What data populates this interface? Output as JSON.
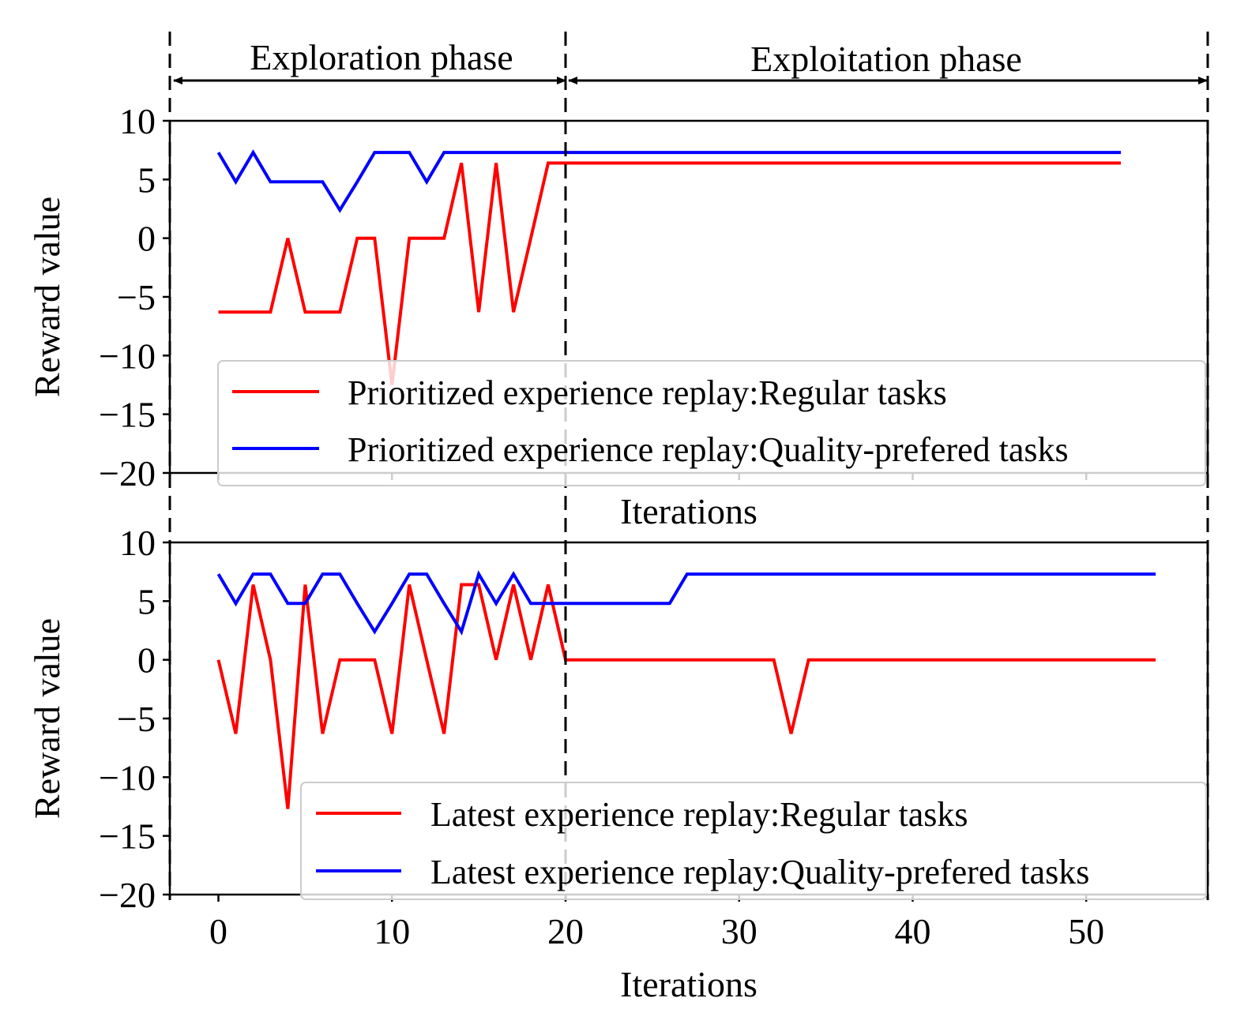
{
  "phases": {
    "exploration_label": "Exploration phase",
    "exploitation_label": "Exploitation phase",
    "boundaries_x": [
      -2.8,
      20,
      57
    ]
  },
  "chart_data": [
    {
      "type": "line",
      "xlabel": "Iterations",
      "ylabel": "Reward value",
      "xlim": [
        -2.8,
        57
      ],
      "ylim": [
        -20,
        10
      ],
      "yticks": [
        10,
        5,
        0,
        -5,
        -10,
        -15,
        -20
      ],
      "ytick_labels": [
        "10",
        "5",
        "0",
        "−5",
        "−10",
        "−15",
        "−20"
      ],
      "xticks": [
        0,
        10,
        20,
        30,
        40,
        50
      ],
      "show_xtick_labels": false,
      "legend_position": "lower-right",
      "grid": false,
      "series": [
        {
          "name": "Prioritized experience replay:Regular tasks",
          "color": "#ff0000",
          "x": [
            0,
            1,
            2,
            3,
            4,
            5,
            6,
            7,
            8,
            9,
            10,
            11,
            12,
            13,
            14,
            15,
            16,
            17,
            18,
            19,
            20,
            21,
            22,
            23,
            24,
            25,
            26,
            27,
            28,
            29,
            30,
            31,
            32,
            33,
            34,
            35,
            36,
            37,
            38,
            39,
            40,
            41,
            42,
            43,
            44,
            45,
            46,
            47,
            48,
            49,
            50,
            51,
            52
          ],
          "values": [
            -6.3,
            -6.3,
            -6.3,
            -6.3,
            0,
            -6.3,
            -6.3,
            -6.3,
            0,
            0,
            -12.5,
            0,
            0,
            0,
            6.4,
            -6.3,
            6.4,
            -6.3,
            0,
            6.4,
            6.4,
            6.4,
            6.4,
            6.4,
            6.4,
            6.4,
            6.4,
            6.4,
            6.4,
            6.4,
            6.4,
            6.4,
            6.4,
            6.4,
            6.4,
            6.4,
            6.4,
            6.4,
            6.4,
            6.4,
            6.4,
            6.4,
            6.4,
            6.4,
            6.4,
            6.4,
            6.4,
            6.4,
            6.4,
            6.4,
            6.4,
            6.4,
            6.4
          ]
        },
        {
          "name": "Prioritized experience replay:Quality-prefered tasks",
          "color": "#0000ff",
          "x": [
            0,
            1,
            2,
            3,
            4,
            5,
            6,
            7,
            8,
            9,
            10,
            11,
            12,
            13,
            14,
            15,
            16,
            17,
            18,
            19,
            20,
            21,
            22,
            23,
            24,
            25,
            26,
            27,
            28,
            29,
            30,
            31,
            32,
            33,
            34,
            35,
            36,
            37,
            38,
            39,
            40,
            41,
            42,
            43,
            44,
            45,
            46,
            47,
            48,
            49,
            50,
            51,
            52
          ],
          "values": [
            7.3,
            4.8,
            7.3,
            4.8,
            4.8,
            4.8,
            4.8,
            2.4,
            4.8,
            7.3,
            7.3,
            7.3,
            4.8,
            7.3,
            7.3,
            7.3,
            7.3,
            7.3,
            7.3,
            7.3,
            7.3,
            7.3,
            7.3,
            7.3,
            7.3,
            7.3,
            7.3,
            7.3,
            7.3,
            7.3,
            7.3,
            7.3,
            7.3,
            7.3,
            7.3,
            7.3,
            7.3,
            7.3,
            7.3,
            7.3,
            7.3,
            7.3,
            7.3,
            7.3,
            7.3,
            7.3,
            7.3,
            7.3,
            7.3,
            7.3,
            7.3,
            7.3,
            7.3
          ]
        }
      ]
    },
    {
      "type": "line",
      "xlabel": "Iterations",
      "ylabel": "Reward value",
      "xlim": [
        -2.8,
        57
      ],
      "ylim": [
        -20,
        10
      ],
      "yticks": [
        10,
        5,
        0,
        -5,
        -10,
        -15,
        -20
      ],
      "ytick_labels": [
        "10",
        "5",
        "0",
        "−5",
        "−10",
        "−15",
        "−20"
      ],
      "xticks": [
        0,
        10,
        20,
        30,
        40,
        50
      ],
      "xtick_labels": [
        "0",
        "10",
        "20",
        "30",
        "40",
        "50"
      ],
      "show_xtick_labels": true,
      "legend_position": "lower-right",
      "grid": false,
      "series": [
        {
          "name": "Latest experience replay:Regular tasks",
          "color": "#ff0000",
          "x": [
            0,
            1,
            2,
            3,
            4,
            5,
            6,
            7,
            8,
            9,
            10,
            11,
            12,
            13,
            14,
            15,
            16,
            17,
            18,
            19,
            20,
            21,
            22,
            23,
            24,
            25,
            26,
            27,
            28,
            29,
            30,
            31,
            32,
            33,
            34,
            35,
            36,
            37,
            38,
            39,
            40,
            41,
            42,
            43,
            44,
            45,
            46,
            47,
            48,
            49,
            50,
            51,
            52,
            53,
            54
          ],
          "values": [
            0,
            -6.3,
            6.4,
            0,
            -12.7,
            6.4,
            -6.3,
            0,
            0,
            0,
            -6.3,
            6.4,
            0,
            -6.3,
            6.4,
            6.4,
            0,
            6.4,
            0,
            6.4,
            0,
            0,
            0,
            0,
            0,
            0,
            0,
            0,
            0,
            0,
            0,
            0,
            0,
            -6.3,
            0,
            0,
            0,
            0,
            0,
            0,
            0,
            0,
            0,
            0,
            0,
            0,
            0,
            0,
            0,
            0,
            0,
            0,
            0,
            0,
            0
          ]
        },
        {
          "name": "Latest experience replay:Quality-prefered tasks",
          "color": "#0000ff",
          "x": [
            0,
            1,
            2,
            3,
            4,
            5,
            6,
            7,
            8,
            9,
            10,
            11,
            12,
            13,
            14,
            15,
            16,
            17,
            18,
            19,
            20,
            21,
            22,
            23,
            24,
            25,
            26,
            27,
            28,
            29,
            30,
            31,
            32,
            33,
            34,
            35,
            36,
            37,
            38,
            39,
            40,
            41,
            42,
            43,
            44,
            45,
            46,
            47,
            48,
            49,
            50,
            51,
            52,
            53,
            54
          ],
          "values": [
            7.3,
            4.8,
            7.3,
            7.3,
            4.8,
            4.8,
            7.3,
            7.3,
            4.8,
            2.4,
            4.8,
            7.3,
            7.3,
            4.8,
            2.4,
            7.3,
            4.8,
            7.3,
            4.8,
            4.8,
            4.8,
            4.8,
            4.8,
            4.8,
            4.8,
            4.8,
            4.8,
            7.3,
            7.3,
            7.3,
            7.3,
            7.3,
            7.3,
            7.3,
            7.3,
            7.3,
            7.3,
            7.3,
            7.3,
            7.3,
            7.3,
            7.3,
            7.3,
            7.3,
            7.3,
            7.3,
            7.3,
            7.3,
            7.3,
            7.3,
            7.3,
            7.3,
            7.3,
            7.3,
            7.3
          ]
        }
      ]
    }
  ]
}
